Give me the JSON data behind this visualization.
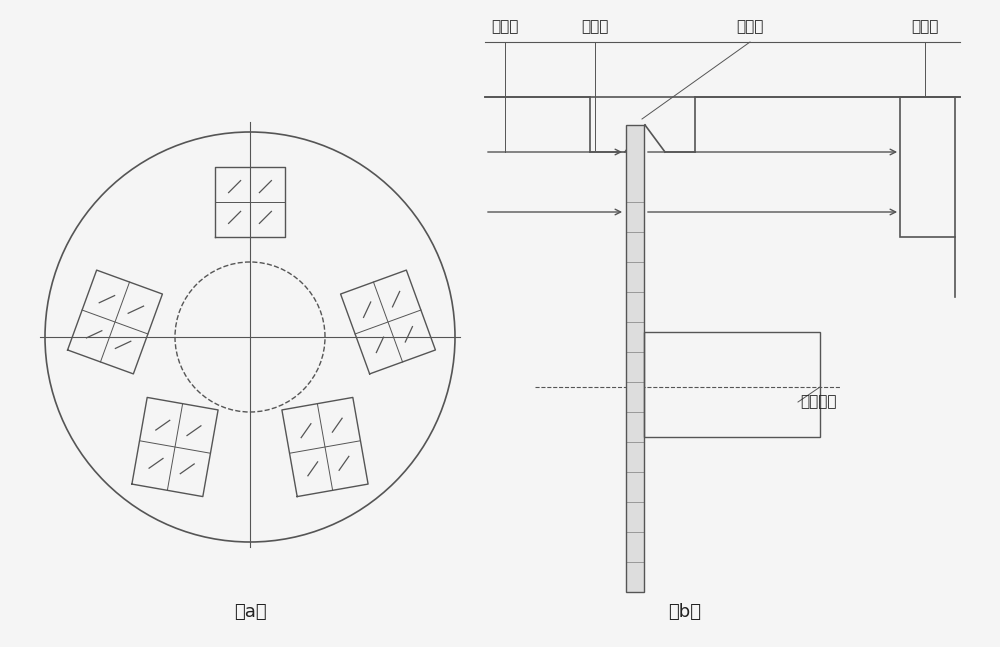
{
  "bg_color": "#f5f5f5",
  "line_color": "#555555",
  "text_color": "#222222",
  "label_a": "（a）",
  "label_b": "（b）",
  "labels_top": [
    "入射光",
    "滤光片",
    "滤光轮",
    "焦平面"
  ],
  "label_drive": "驱动机构",
  "fig_width": 10.0,
  "fig_height": 6.47
}
